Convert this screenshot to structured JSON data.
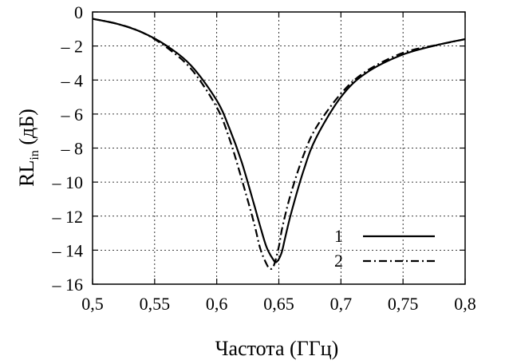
{
  "chart_data": {
    "type": "line",
    "title": "",
    "xlabel": "Частота (ГГц)",
    "ylabel": {
      "main": "RL",
      "sub": "in",
      "unit": " (дБ)"
    },
    "xlim": [
      0.5,
      0.8
    ],
    "ylim": [
      -16,
      0
    ],
    "x_ticks": [
      "0,5",
      "0,55",
      "0,6",
      "0,65",
      "0,7",
      "0,75",
      "0,8"
    ],
    "x_tick_values": [
      0.5,
      0.55,
      0.6,
      0.65,
      0.7,
      0.75,
      0.8
    ],
    "y_ticks": [
      "0",
      "– 2",
      "– 4",
      "– 6",
      "– 8",
      "– 10",
      "– 12",
      "– 14",
      "– 16"
    ],
    "y_tick_values": [
      0,
      -2,
      -4,
      -6,
      -8,
      -10,
      -12,
      -14,
      -16
    ],
    "grid": true,
    "legend_position": "bottom-right",
    "series": [
      {
        "name": "1",
        "style": "solid",
        "color": "#000000",
        "x": [
          0.5,
          0.52,
          0.54,
          0.56,
          0.58,
          0.6,
          0.61,
          0.62,
          0.63,
          0.635,
          0.64,
          0.645,
          0.648,
          0.652,
          0.655,
          0.66,
          0.67,
          0.68,
          0.7,
          0.72,
          0.75,
          0.78,
          0.8
        ],
        "y": [
          -0.4,
          -0.7,
          -1.2,
          -2.0,
          -3.2,
          -5.2,
          -6.8,
          -8.8,
          -11.3,
          -12.6,
          -13.8,
          -14.5,
          -14.7,
          -14.2,
          -13.3,
          -11.8,
          -9.3,
          -7.4,
          -5.0,
          -3.6,
          -2.5,
          -1.9,
          -1.6
        ]
      },
      {
        "name": "2",
        "style": "dashdot",
        "color": "#000000",
        "x": [
          0.5,
          0.52,
          0.54,
          0.56,
          0.58,
          0.6,
          0.61,
          0.62,
          0.63,
          0.635,
          0.64,
          0.643,
          0.646,
          0.65,
          0.653,
          0.66,
          0.67,
          0.68,
          0.7,
          0.72,
          0.75,
          0.78,
          0.8
        ],
        "y": [
          -0.4,
          -0.7,
          -1.2,
          -2.1,
          -3.4,
          -5.6,
          -7.4,
          -9.8,
          -12.4,
          -13.9,
          -14.8,
          -15.1,
          -14.9,
          -13.8,
          -12.6,
          -10.6,
          -8.4,
          -6.8,
          -4.8,
          -3.5,
          -2.4,
          -1.9,
          -1.6
        ]
      }
    ]
  }
}
